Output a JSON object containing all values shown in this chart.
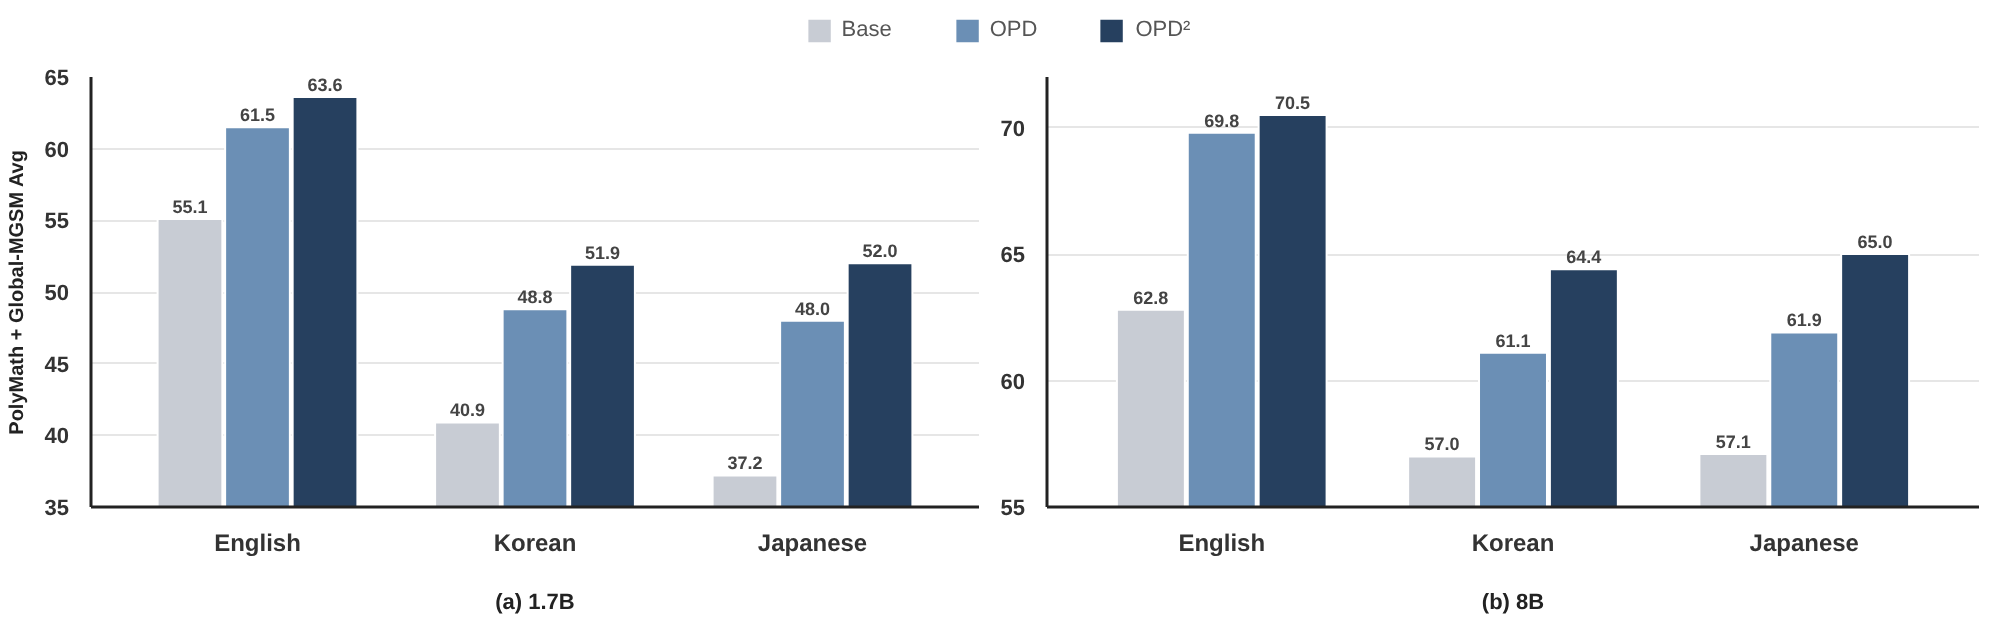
{
  "chart_data": [
    {
      "type": "bar",
      "xlabel": "(a) 1.7B",
      "ylabel": "PolyMath + Global-MGSM Avg",
      "categories": [
        "English",
        "Korean",
        "Japanese"
      ],
      "series": [
        {
          "name": "Base",
          "color": "#c8ccd4",
          "values": [
            55.1,
            40.9,
            37.2
          ],
          "value_labels": [
            "55.1",
            "40.9",
            "37.2"
          ]
        },
        {
          "name": "OPD",
          "color": "#6b8fb5",
          "values": [
            61.5,
            48.8,
            48.0
          ],
          "value_labels": [
            "61.5",
            "48.8",
            "48.0"
          ]
        },
        {
          "name": "OPD²",
          "color": "#26405f",
          "values": [
            63.6,
            51.9,
            52.0
          ],
          "value_labels": [
            "63.6",
            "51.9",
            "52.0"
          ]
        }
      ],
      "ylim": [
        35,
        65
      ],
      "yticks": [
        35,
        40,
        45,
        50,
        55,
        60,
        65
      ],
      "grid": "y",
      "legend": "top"
    },
    {
      "type": "bar",
      "xlabel": "(b) 8B",
      "categories": [
        "English",
        "Korean",
        "Japanese"
      ],
      "series": [
        {
          "color": "#c8ccd4",
          "values": [
            62.8,
            57.0,
            57.1
          ],
          "value_labels": [
            "62.8",
            "57.0",
            "57.1"
          ]
        },
        {
          "color": "#6b8fb5",
          "values": [
            69.8,
            61.1,
            61.9
          ],
          "value_labels": [
            "69.8",
            "61.1",
            "61.9"
          ]
        },
        {
          "color": "#26405f",
          "values": [
            70.5,
            64.4,
            65.0
          ],
          "value_labels": [
            "70.5",
            "64.4",
            "65.0"
          ]
        }
      ],
      "ylim": [
        55,
        72
      ],
      "yticks": [
        55,
        60,
        65,
        70
      ],
      "grid": "y"
    }
  ]
}
